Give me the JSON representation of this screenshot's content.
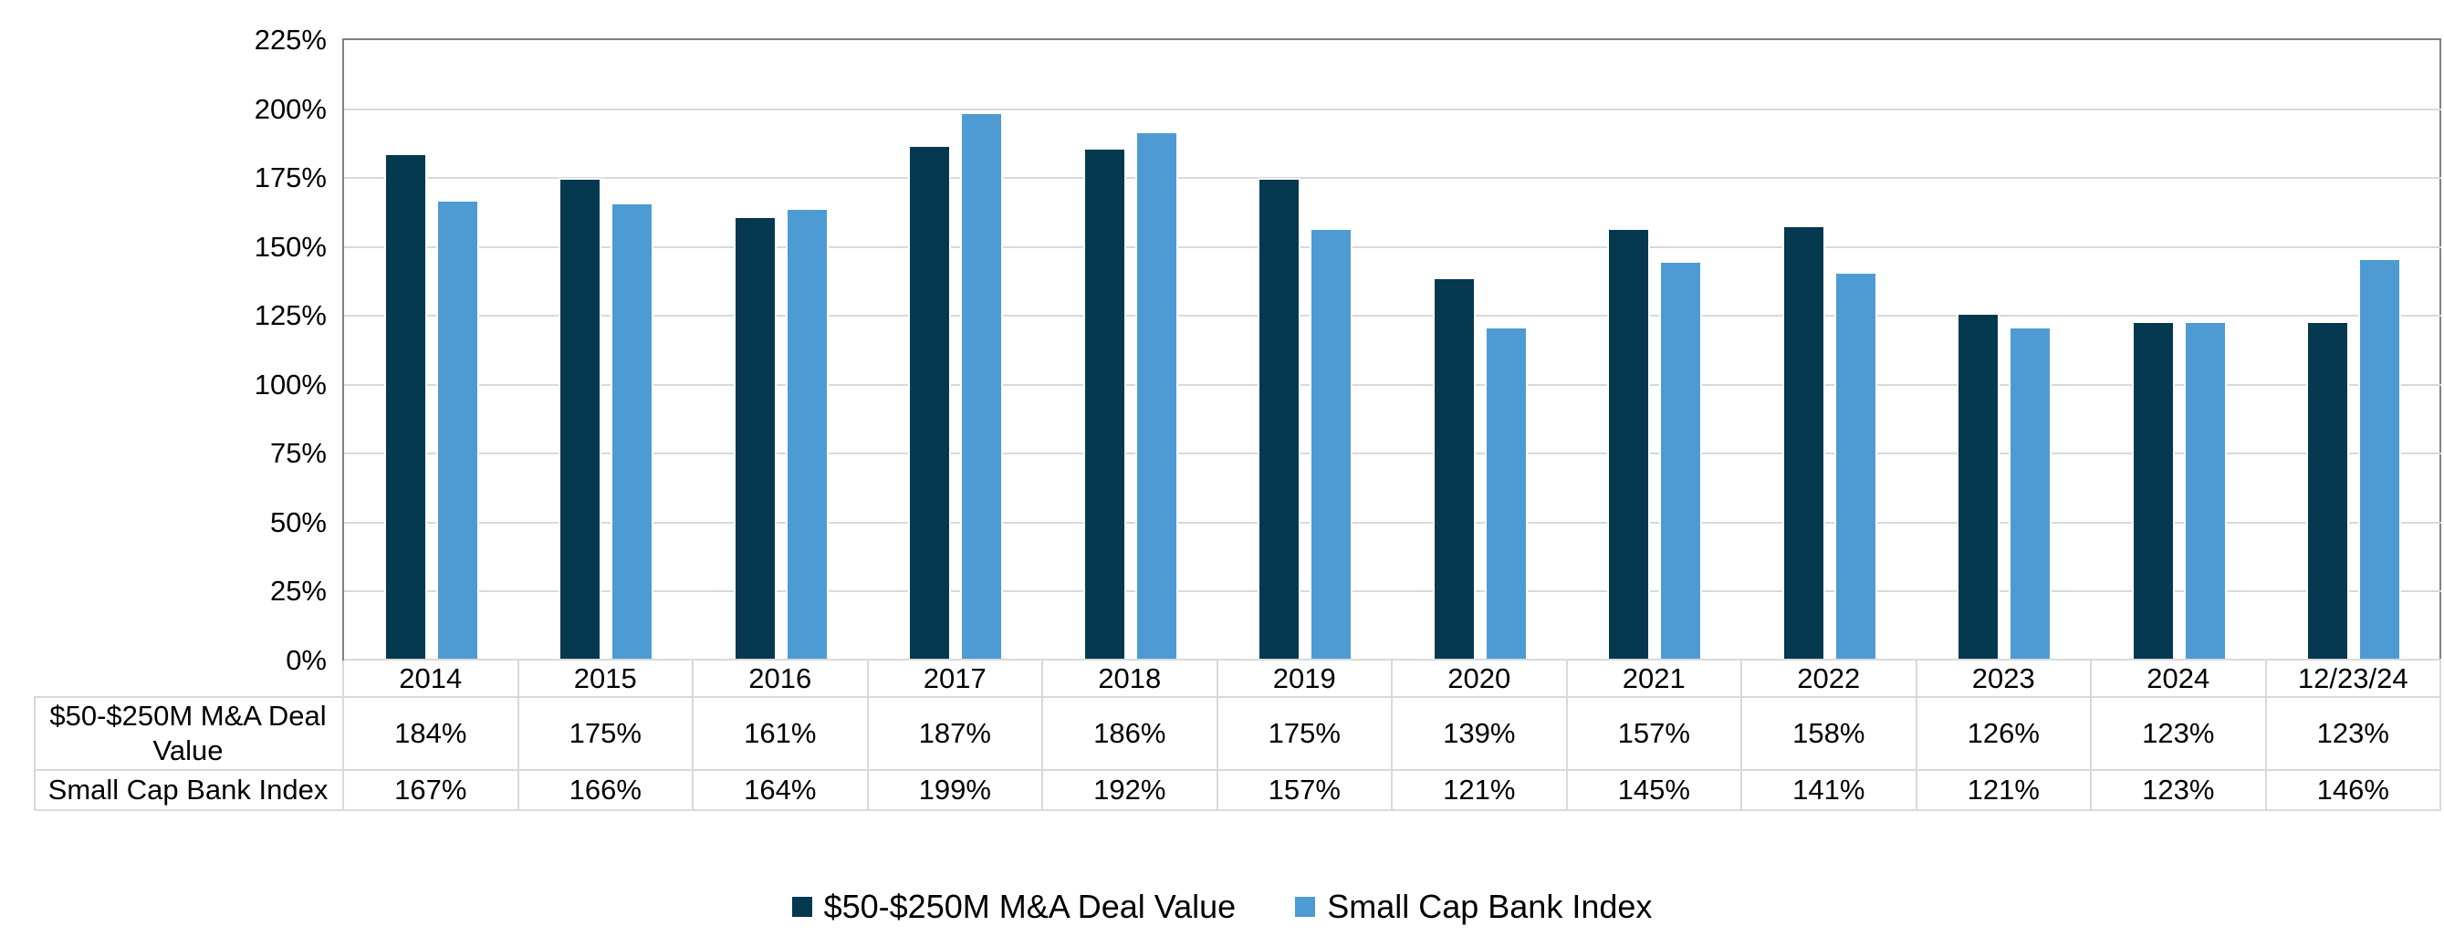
{
  "chart_data": {
    "type": "bar",
    "title": "",
    "categories": [
      "2014",
      "2015",
      "2016",
      "2017",
      "2018",
      "2019",
      "2020",
      "2021",
      "2022",
      "2023",
      "2024",
      "12/23/24"
    ],
    "series": [
      {
        "name": "$50-$250M M&A Deal Value",
        "color": "#04394F",
        "values": [
          184,
          175,
          161,
          187,
          186,
          175,
          139,
          157,
          158,
          126,
          123,
          123
        ]
      },
      {
        "name": "Small Cap Bank Index",
        "color": "#4E9BD3",
        "values": [
          167,
          166,
          164,
          199,
          192,
          157,
          121,
          145,
          141,
          121,
          123,
          146
        ]
      }
    ],
    "value_suffix": "%",
    "ylim": [
      0,
      225
    ],
    "y_tick_step": 25,
    "y_tick_labels": [
      "0%",
      "25%",
      "50%",
      "75%",
      "100%",
      "125%",
      "150%",
      "175%",
      "200%",
      "225%"
    ],
    "grid": true,
    "legend_position": "bottom",
    "data_table_shown": true
  }
}
